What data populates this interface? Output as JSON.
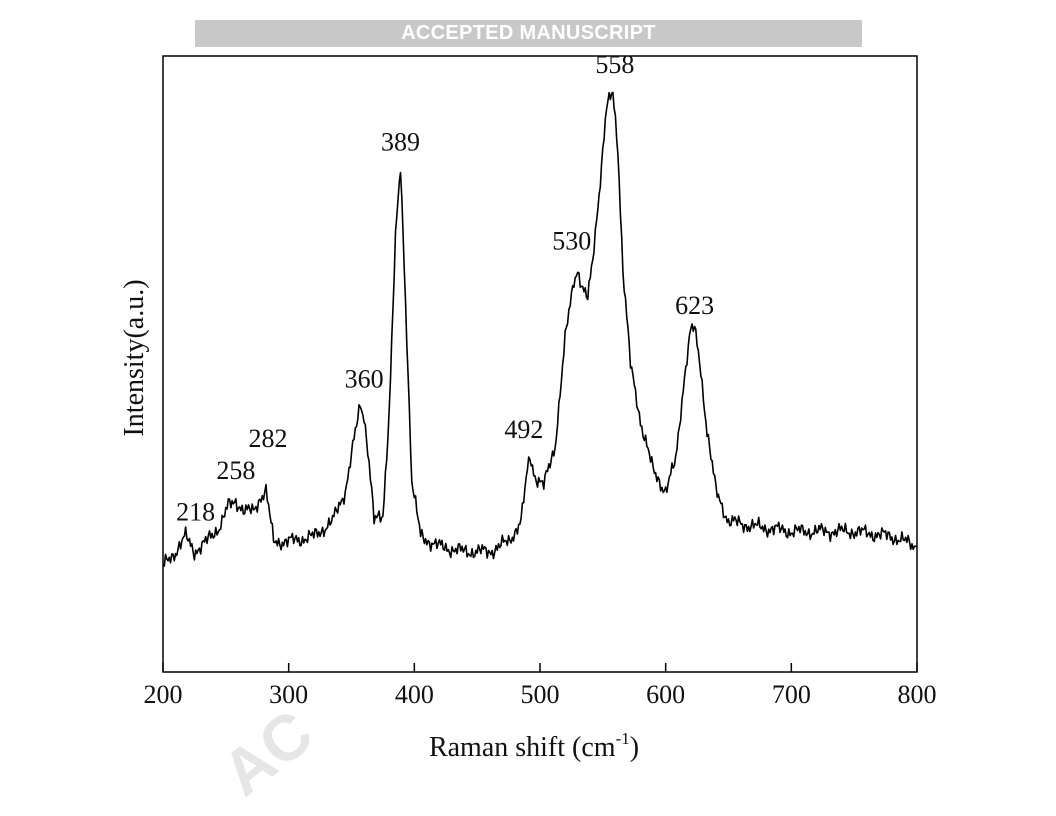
{
  "banner": "ACCEPTED MANUSCRIPT",
  "watermark": "AC",
  "chart_data": {
    "type": "line",
    "xlabel": "Raman shift (cm",
    "xlabel_sup": "-1",
    "xlabel_end": ")",
    "ylabel": "Intensity(a.u.)",
    "xlim": [
      200,
      800
    ],
    "ylim": [
      0,
      1
    ],
    "xticks": [
      "200",
      "300",
      "400",
      "500",
      "600",
      "700",
      "800"
    ],
    "yticks_labeled": false,
    "grid": false,
    "legend": "none",
    "line_color": "#000000",
    "series": [
      {
        "x": [
          200,
          210,
          218,
          225,
          235,
          245,
          252,
          258,
          265,
          272,
          278,
          282,
          288,
          300,
          320,
          335,
          345,
          352,
          357,
          360,
          364,
          368,
          375,
          380,
          385,
          389,
          393,
          398,
          405,
          420,
          440,
          460,
          475,
          485,
          490,
          492,
          496,
          503,
          512,
          520,
          527,
          530,
          534,
          538,
          542,
          548,
          553,
          558,
          562,
          566,
          572,
          580,
          590,
          600,
          608,
          615,
          620,
          623,
          627,
          633,
          640,
          650,
          670,
          700,
          750,
          780,
          800
        ],
        "y": [
          0.09,
          0.12,
          0.15,
          0.12,
          0.14,
          0.17,
          0.21,
          0.22,
          0.2,
          0.2,
          0.23,
          0.24,
          0.14,
          0.14,
          0.15,
          0.18,
          0.24,
          0.34,
          0.41,
          0.39,
          0.3,
          0.18,
          0.19,
          0.4,
          0.74,
          0.88,
          0.62,
          0.26,
          0.15,
          0.13,
          0.12,
          0.12,
          0.14,
          0.18,
          0.28,
          0.31,
          0.27,
          0.25,
          0.33,
          0.54,
          0.66,
          0.68,
          0.64,
          0.62,
          0.7,
          0.86,
          1.0,
          1.03,
          0.92,
          0.68,
          0.49,
          0.38,
          0.28,
          0.24,
          0.3,
          0.47,
          0.56,
          0.56,
          0.5,
          0.36,
          0.24,
          0.18,
          0.17,
          0.16,
          0.16,
          0.15,
          0.13
        ]
      }
    ],
    "annotations": [
      {
        "text": "218",
        "x": 218,
        "y": 0.15
      },
      {
        "text": "258",
        "x": 258,
        "y": 0.22
      },
      {
        "text": "282",
        "x": 282,
        "y": 0.24
      },
      {
        "text": "360",
        "x": 360,
        "y": 0.41
      },
      {
        "text": "389",
        "x": 389,
        "y": 0.88
      },
      {
        "text": "492",
        "x": 492,
        "y": 0.31
      },
      {
        "text": "530",
        "x": 530,
        "y": 0.68
      },
      {
        "text": "558",
        "x": 558,
        "y": 1.03
      },
      {
        "text": "623",
        "x": 623,
        "y": 0.56
      }
    ]
  }
}
